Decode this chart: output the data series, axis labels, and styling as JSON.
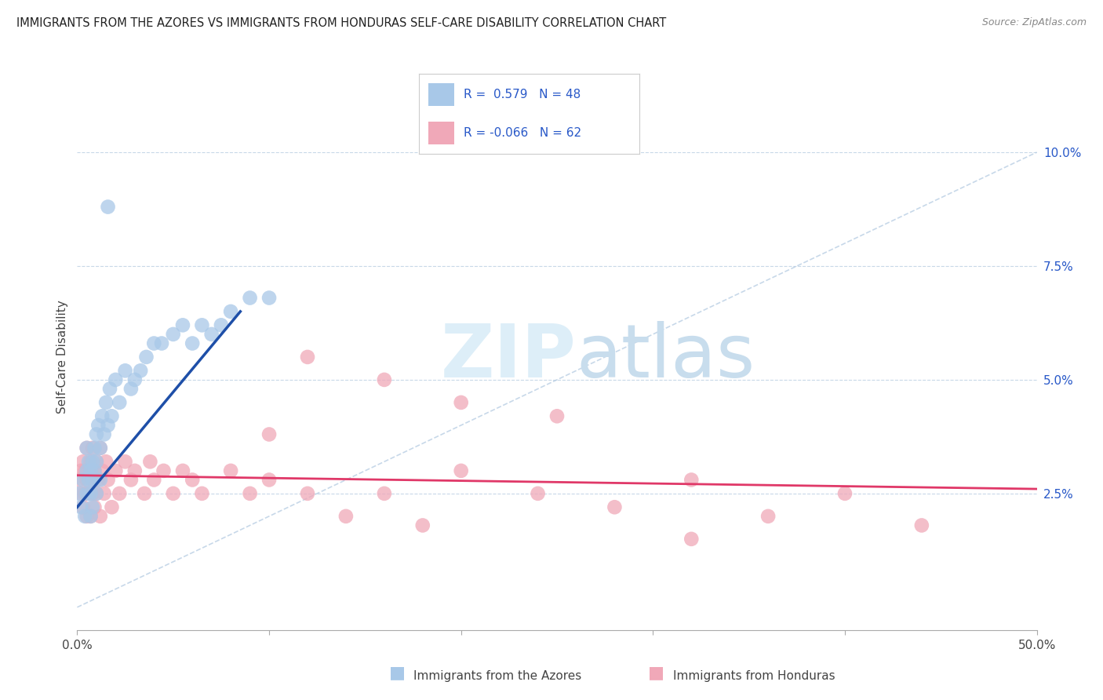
{
  "title": "IMMIGRANTS FROM THE AZORES VS IMMIGRANTS FROM HONDURAS SELF-CARE DISABILITY CORRELATION CHART",
  "source": "Source: ZipAtlas.com",
  "ylabel": "Self-Care Disability",
  "color_azores": "#a8c8e8",
  "color_azores_line": "#1e4fa8",
  "color_honduras": "#f0a8b8",
  "color_honduras_line": "#e03868",
  "color_legend_text": "#2858c8",
  "background": "#ffffff",
  "grid_color": "#c8d8e8",
  "xmin": 0.0,
  "xmax": 0.5,
  "ymin": -0.005,
  "ymax": 0.115,
  "yticks": [
    0.0,
    0.025,
    0.05,
    0.075,
    0.1
  ],
  "ytick_labels": [
    "",
    "2.5%",
    "5.0%",
    "7.5%",
    "10.0%"
  ],
  "legend_azores_r": "0.579",
  "legend_azores_n": "48",
  "legend_honduras_r": "-0.066",
  "legend_honduras_n": "62",
  "azores_x": [
    0.001,
    0.002,
    0.003,
    0.004,
    0.005,
    0.005,
    0.005,
    0.006,
    0.006,
    0.007,
    0.007,
    0.007,
    0.008,
    0.008,
    0.008,
    0.009,
    0.009,
    0.01,
    0.01,
    0.01,
    0.011,
    0.012,
    0.012,
    0.013,
    0.014,
    0.015,
    0.016,
    0.017,
    0.018,
    0.02,
    0.022,
    0.025,
    0.028,
    0.03,
    0.033,
    0.036,
    0.04,
    0.044,
    0.05,
    0.055,
    0.06,
    0.065,
    0.07,
    0.075,
    0.08,
    0.09,
    0.1,
    0.016
  ],
  "azores_y": [
    0.025,
    0.022,
    0.028,
    0.02,
    0.03,
    0.035,
    0.025,
    0.028,
    0.032,
    0.025,
    0.03,
    0.02,
    0.032,
    0.028,
    0.022,
    0.035,
    0.03,
    0.038,
    0.032,
    0.025,
    0.04,
    0.035,
    0.028,
    0.042,
    0.038,
    0.045,
    0.04,
    0.048,
    0.042,
    0.05,
    0.045,
    0.052,
    0.048,
    0.05,
    0.052,
    0.055,
    0.058,
    0.058,
    0.06,
    0.062,
    0.058,
    0.062,
    0.06,
    0.062,
    0.065,
    0.068,
    0.068,
    0.088
  ],
  "honduras_x": [
    0.001,
    0.002,
    0.002,
    0.003,
    0.003,
    0.004,
    0.004,
    0.005,
    0.005,
    0.005,
    0.006,
    0.006,
    0.007,
    0.007,
    0.008,
    0.008,
    0.008,
    0.009,
    0.009,
    0.01,
    0.01,
    0.011,
    0.012,
    0.012,
    0.013,
    0.014,
    0.015,
    0.016,
    0.018,
    0.02,
    0.022,
    0.025,
    0.028,
    0.03,
    0.035,
    0.038,
    0.04,
    0.045,
    0.05,
    0.055,
    0.06,
    0.065,
    0.08,
    0.09,
    0.1,
    0.12,
    0.14,
    0.16,
    0.2,
    0.24,
    0.28,
    0.32,
    0.36,
    0.4,
    0.44,
    0.32,
    0.12,
    0.16,
    0.2,
    0.25,
    0.1,
    0.18
  ],
  "honduras_y": [
    0.028,
    0.025,
    0.03,
    0.022,
    0.032,
    0.025,
    0.03,
    0.02,
    0.028,
    0.035,
    0.025,
    0.03,
    0.02,
    0.032,
    0.025,
    0.028,
    0.035,
    0.022,
    0.03,
    0.025,
    0.032,
    0.028,
    0.02,
    0.035,
    0.03,
    0.025,
    0.032,
    0.028,
    0.022,
    0.03,
    0.025,
    0.032,
    0.028,
    0.03,
    0.025,
    0.032,
    0.028,
    0.03,
    0.025,
    0.03,
    0.028,
    0.025,
    0.03,
    0.025,
    0.028,
    0.025,
    0.02,
    0.025,
    0.03,
    0.025,
    0.022,
    0.028,
    0.02,
    0.025,
    0.018,
    0.015,
    0.055,
    0.05,
    0.045,
    0.042,
    0.038,
    0.018
  ]
}
